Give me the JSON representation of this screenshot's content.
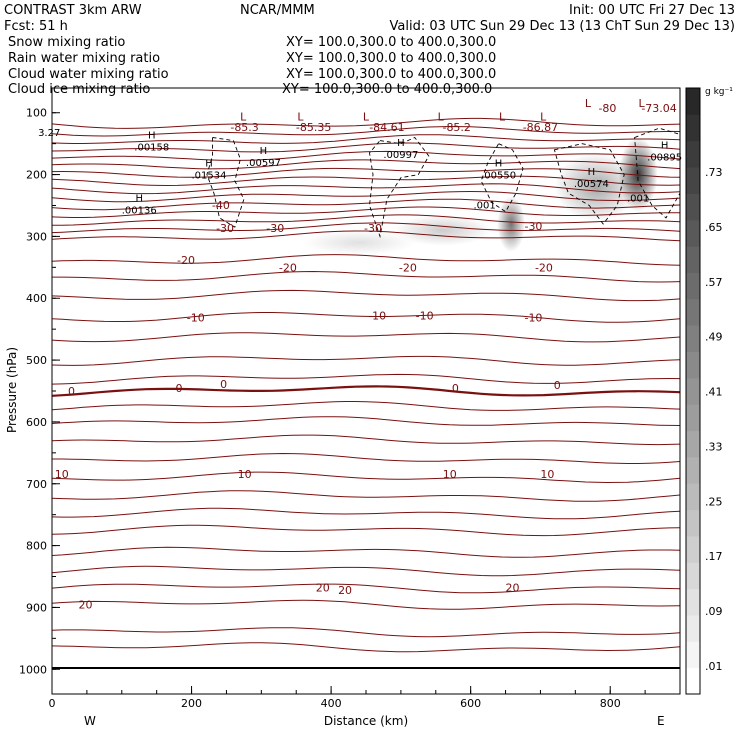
{
  "header": {
    "model": "CONTRAST  3km ARW",
    "org": "NCAR/MMM",
    "init": "Init: 00 UTC Fri 27 Dec 13",
    "fcst": "Fcst:   51 h",
    "valid": "Valid: 03 UTC Sun 29 Dec 13 (13 ChT Sun 29 Dec 13)",
    "legend": [
      {
        "name": "Snow mixing ratio",
        "xy": "XY= 100.0,300.0 to 400.0,300.0",
        "color": "#000000"
      },
      {
        "name": "Rain water mixing ratio",
        "xy": "XY= 100.0,300.0 to 400.0,300.0",
        "color": "#e00000"
      },
      {
        "name": "Cloud water mixing ratio",
        "xy": "XY= 100.0,300.0 to 400.0,300.0",
        "color": "#1010c0"
      },
      {
        "name": "Cloud ice mixing ratio",
        "xy": "XY= 100.0,300.0 to 400.0,300.0",
        "color": "#000000"
      }
    ]
  },
  "chart_data": {
    "type": "contour",
    "xlabel": "Distance (km)",
    "ylabel": "Pressure (hPa)",
    "xlim": [
      0,
      900
    ],
    "ylim": [
      1040,
      60
    ],
    "xticks": [
      0,
      200,
      400,
      600,
      800
    ],
    "yticks": [
      100,
      200,
      300,
      400,
      500,
      600,
      700,
      800,
      900,
      1000
    ],
    "direction_labels": {
      "west": "W",
      "east": "E"
    },
    "colorbar": {
      "unit": "g kg⁻¹",
      "labels": [
        ".01",
        ".09",
        ".17",
        ".25",
        ".33",
        ".41",
        ".49",
        ".57",
        ".65",
        ".73"
      ]
    },
    "contour_color": "#7a1010",
    "contour_labels": [
      {
        "text": "-85.3",
        "x": 276,
        "p": 123
      },
      {
        "text": "-85.35",
        "x": 375,
        "p": 123
      },
      {
        "text": "-84.61",
        "x": 480,
        "p": 123
      },
      {
        "text": "-85.2",
        "x": 580,
        "p": 123
      },
      {
        "text": "-86.87",
        "x": 700,
        "p": 123
      },
      {
        "text": "-80",
        "x": 796,
        "p": 92
      },
      {
        "text": "-73.04",
        "x": 870,
        "p": 92
      },
      {
        "text": "-40",
        "x": 242,
        "p": 249
      },
      {
        "text": "-30",
        "x": 248,
        "p": 286
      },
      {
        "text": "-30",
        "x": 320,
        "p": 286
      },
      {
        "text": "-30",
        "x": 460,
        "p": 286
      },
      {
        "text": "-30",
        "x": 690,
        "p": 283
      },
      {
        "text": "-20",
        "x": 192,
        "p": 338
      },
      {
        "text": "-20",
        "x": 338,
        "p": 350
      },
      {
        "text": "-20",
        "x": 510,
        "p": 350
      },
      {
        "text": "-20",
        "x": 705,
        "p": 350
      },
      {
        "text": "-10",
        "x": 206,
        "p": 431
      },
      {
        "text": "-10",
        "x": 466,
        "p": 428
      },
      {
        "text": "-10",
        "x": 534,
        "p": 428
      },
      {
        "text": "-10",
        "x": 690,
        "p": 431
      },
      {
        "text": "0",
        "x": 28,
        "p": 550
      },
      {
        "text": "0",
        "x": 182,
        "p": 545
      },
      {
        "text": "0",
        "x": 246,
        "p": 539
      },
      {
        "text": "0",
        "x": 578,
        "p": 545
      },
      {
        "text": "0",
        "x": 724,
        "p": 540
      },
      {
        "text": "10",
        "x": 14,
        "p": 684
      },
      {
        "text": "10",
        "x": 276,
        "p": 684
      },
      {
        "text": "10",
        "x": 570,
        "p": 684
      },
      {
        "text": "10",
        "x": 710,
        "p": 684
      },
      {
        "text": "20",
        "x": 48,
        "p": 895
      },
      {
        "text": "20",
        "x": 388,
        "p": 868
      },
      {
        "text": "20",
        "x": 420,
        "p": 872
      },
      {
        "text": "20",
        "x": 660,
        "p": 868
      }
    ],
    "highs": [
      {
        "value": "3.27",
        "x": -4,
        "p": 134,
        "h": false
      },
      {
        "value": ".00158",
        "x": 143,
        "p": 158,
        "h": true
      },
      {
        "value": ".01534",
        "x": 225,
        "p": 203,
        "h": true
      },
      {
        "value": ".00597",
        "x": 303,
        "p": 183,
        "h": true
      },
      {
        "value": ".00997",
        "x": 500,
        "p": 170,
        "h": true
      },
      {
        "value": ".00136",
        "x": 125,
        "p": 260,
        "h": true
      },
      {
        "value": ".00550",
        "x": 640,
        "p": 203,
        "h": true
      },
      {
        "value": ".00574",
        "x": 773,
        "p": 217,
        "h": true
      },
      {
        "value": ".00895",
        "x": 878,
        "p": 174,
        "h": true
      },
      {
        "value": ".001",
        "x": 620,
        "p": 252,
        "h": false
      },
      {
        "value": ".001",
        "x": 840,
        "p": 240,
        "h": false
      }
    ],
    "lows": [
      {
        "x": 274,
        "p": 106
      },
      {
        "x": 356,
        "p": 106
      },
      {
        "x": 450,
        "p": 106
      },
      {
        "x": 557,
        "p": 106
      },
      {
        "x": 645,
        "p": 106
      },
      {
        "x": 704,
        "p": 106
      },
      {
        "x": 845,
        "p": 84
      },
      {
        "x": 768,
        "p": 84
      }
    ],
    "snow_blobs": [
      {
        "x": 840,
        "p": 200,
        "rx": 28,
        "rp": 60,
        "intensity": 0.8
      },
      {
        "x": 780,
        "p": 220,
        "rx": 60,
        "rp": 55,
        "intensity": 0.35
      },
      {
        "x": 658,
        "p": 280,
        "rx": 20,
        "rp": 45,
        "intensity": 0.55
      },
      {
        "x": 560,
        "p": 290,
        "rx": 70,
        "rp": 25,
        "intensity": 0.2
      },
      {
        "x": 440,
        "p": 310,
        "rx": 80,
        "rp": 20,
        "intensity": 0.12
      }
    ]
  }
}
